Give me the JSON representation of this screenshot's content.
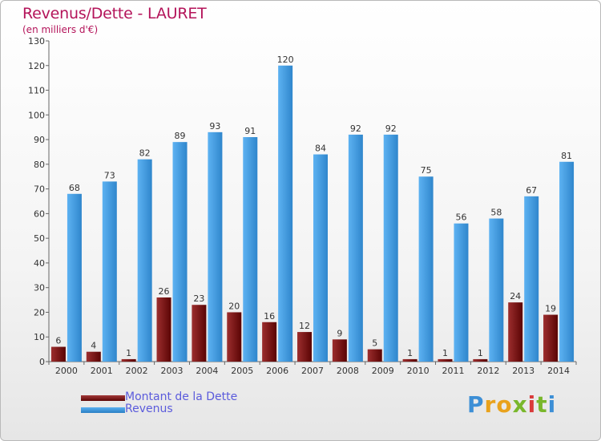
{
  "header": {
    "title": "Revenus/Dette - LAURET",
    "subtitle": "(en milliers d'€)"
  },
  "legend": {
    "dette_label": "Montant de la Dette",
    "revenus_label": "Revenus"
  },
  "logo": {
    "text": "Proxiti"
  },
  "colors": {
    "dette": "#7a0e0e",
    "revenus": "#3c96dc",
    "axis_text": "#333333",
    "title": "#b4145a"
  },
  "chart_data": {
    "type": "bar",
    "title": "Revenus/Dette - LAURET",
    "subtitle": "(en milliers d'€)",
    "categories": [
      "2000",
      "2001",
      "2002",
      "2003",
      "2004",
      "2005",
      "2006",
      "2007",
      "2008",
      "2009",
      "2010",
      "2011",
      "2012",
      "2013",
      "2014"
    ],
    "series": [
      {
        "name": "Montant de la Dette",
        "values": [
          6,
          4,
          1,
          26,
          23,
          20,
          16,
          12,
          9,
          5,
          1,
          1,
          1,
          24,
          19
        ]
      },
      {
        "name": "Revenus",
        "values": [
          68,
          73,
          82,
          89,
          93,
          91,
          120,
          84,
          92,
          92,
          75,
          56,
          58,
          67,
          81
        ]
      }
    ],
    "ylim": [
      0,
      130
    ],
    "yticks": [
      0,
      10,
      20,
      30,
      40,
      50,
      60,
      70,
      80,
      90,
      100,
      110,
      120,
      130
    ],
    "grid": false,
    "legend_position": "bottom-left"
  }
}
